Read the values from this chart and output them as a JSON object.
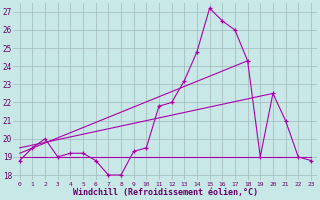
{
  "background_color": "#c8e8e8",
  "grid_color": "#a0b8b8",
  "line_color": "#aa00aa",
  "xlabel": "Windchill (Refroidissement éolien,°C)",
  "xlim": [
    -0.5,
    23.5
  ],
  "ylim": [
    17.7,
    27.5
  ],
  "yticks": [
    18,
    19,
    20,
    21,
    22,
    23,
    24,
    25,
    26,
    27
  ],
  "xticks": [
    0,
    1,
    2,
    3,
    4,
    5,
    6,
    7,
    8,
    9,
    10,
    11,
    12,
    13,
    14,
    15,
    16,
    17,
    18,
    19,
    20,
    21,
    22,
    23
  ],
  "series_main": {
    "x": [
      0,
      1,
      2,
      3,
      4,
      5,
      6,
      7,
      8,
      9,
      10,
      11,
      12,
      13,
      14,
      15,
      16,
      17,
      18,
      19,
      20,
      21,
      22,
      23
    ],
    "y": [
      18.8,
      19.5,
      20.0,
      19.0,
      19.2,
      19.2,
      18.8,
      18.0,
      18.0,
      19.3,
      19.5,
      21.8,
      22.0,
      23.2,
      24.8,
      27.2,
      26.5,
      26.0,
      24.3,
      19.0,
      22.5,
      21.0,
      19.0,
      18.8
    ]
  },
  "series_flat": {
    "x": [
      0,
      19,
      23
    ],
    "y": [
      19.0,
      19.0,
      19.0
    ]
  },
  "series_trend1": {
    "x": [
      0,
      18
    ],
    "y": [
      19.2,
      24.3
    ]
  },
  "series_trend2": {
    "x": [
      0,
      20
    ],
    "y": [
      19.5,
      22.5
    ]
  }
}
